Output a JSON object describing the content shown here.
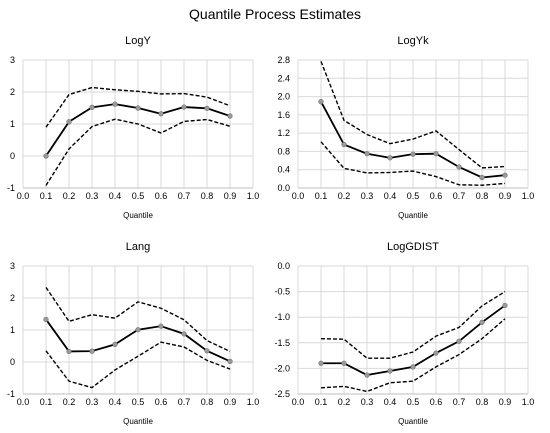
{
  "figure": {
    "title": "Quantile Process Estimates"
  },
  "chart_data": [
    {
      "type": "line",
      "title": "LogY",
      "xlabel": "Quantile",
      "ylabel": "",
      "xlim": [
        0.0,
        1.0
      ],
      "ylim": [
        -1,
        3
      ],
      "xticks": [
        "0.0",
        "0.1",
        "0.2",
        "0.3",
        "0.4",
        "0.5",
        "0.6",
        "0.7",
        "0.8",
        "0.9",
        "1.0"
      ],
      "yticks": [
        "-1",
        "0",
        "1",
        "2",
        "3"
      ],
      "grid": true,
      "x": [
        0.1,
        0.2,
        0.3,
        0.4,
        0.5,
        0.6,
        0.7,
        0.8,
        0.9
      ],
      "series": [
        {
          "role": "estimate",
          "values": [
            0.0,
            1.07,
            1.52,
            1.62,
            1.5,
            1.32,
            1.53,
            1.49,
            1.25
          ]
        },
        {
          "role": "upper",
          "values": [
            0.9,
            1.92,
            2.14,
            2.07,
            2.02,
            1.94,
            1.95,
            1.84,
            1.57
          ]
        },
        {
          "role": "lower",
          "values": [
            -0.92,
            0.22,
            0.92,
            1.15,
            1.0,
            0.72,
            1.08,
            1.14,
            0.93
          ]
        }
      ]
    },
    {
      "type": "line",
      "title": "LogYk",
      "xlabel": "Quantile",
      "ylabel": "",
      "xlim": [
        0.0,
        1.0
      ],
      "ylim": [
        0,
        2.8
      ],
      "xticks": [
        "0.0",
        "0.1",
        "0.2",
        "0.3",
        "0.4",
        "0.5",
        "0.6",
        "0.7",
        "0.8",
        "0.9",
        "1.0"
      ],
      "yticks": [
        "0.0",
        "0.4",
        "0.8",
        "1.2",
        "1.6",
        "2.0",
        "2.4",
        "2.8"
      ],
      "grid": true,
      "x": [
        0.1,
        0.2,
        0.3,
        0.4,
        0.5,
        0.6,
        0.7,
        0.8,
        0.9
      ],
      "series": [
        {
          "role": "estimate",
          "values": [
            1.89,
            0.95,
            0.75,
            0.66,
            0.74,
            0.75,
            0.46,
            0.23,
            0.28
          ]
        },
        {
          "role": "upper",
          "values": [
            2.77,
            1.48,
            1.17,
            0.97,
            1.07,
            1.25,
            0.84,
            0.44,
            0.47
          ]
        },
        {
          "role": "lower",
          "values": [
            1.01,
            0.43,
            0.33,
            0.34,
            0.37,
            0.25,
            0.07,
            0.06,
            0.1
          ]
        }
      ]
    },
    {
      "type": "line",
      "title": "Lang",
      "xlabel": "Quantile",
      "ylabel": "",
      "xlim": [
        0.0,
        1.0
      ],
      "ylim": [
        -1,
        3
      ],
      "xticks": [
        "0.0",
        "0.1",
        "0.2",
        "0.3",
        "0.4",
        "0.5",
        "0.6",
        "0.7",
        "0.8",
        "0.9",
        "1.0"
      ],
      "yticks": [
        "-1",
        "0",
        "1",
        "2",
        "3"
      ],
      "grid": true,
      "x": [
        0.1,
        0.2,
        0.3,
        0.4,
        0.5,
        0.6,
        0.7,
        0.8,
        0.9
      ],
      "series": [
        {
          "role": "estimate",
          "values": [
            1.33,
            0.33,
            0.34,
            0.55,
            1.01,
            1.12,
            0.88,
            0.35,
            0.02
          ]
        },
        {
          "role": "upper",
          "values": [
            2.33,
            1.27,
            1.48,
            1.37,
            1.88,
            1.68,
            1.32,
            0.67,
            0.33
          ]
        },
        {
          "role": "lower",
          "values": [
            0.35,
            -0.6,
            -0.8,
            -0.25,
            0.18,
            0.62,
            0.47,
            0.05,
            -0.22
          ]
        }
      ]
    },
    {
      "type": "line",
      "title": "LogGDIST",
      "xlabel": "Quantile",
      "ylabel": "",
      "xlim": [
        0.0,
        1.0
      ],
      "ylim": [
        -2.5,
        0.0
      ],
      "xticks": [
        "0.0",
        "0.1",
        "0.2",
        "0.3",
        "0.4",
        "0.5",
        "0.6",
        "0.7",
        "0.8",
        "0.9",
        "1.0"
      ],
      "yticks": [
        "-2.5",
        "-2.0",
        "-1.5",
        "-1.0",
        "-0.5",
        "0.0"
      ],
      "grid": true,
      "x": [
        0.1,
        0.2,
        0.3,
        0.4,
        0.5,
        0.6,
        0.7,
        0.8,
        0.9
      ],
      "series": [
        {
          "role": "estimate",
          "values": [
            -1.9,
            -1.9,
            -2.13,
            -2.05,
            -1.97,
            -1.7,
            -1.47,
            -1.1,
            -0.77
          ]
        },
        {
          "role": "upper",
          "values": [
            -1.42,
            -1.43,
            -1.8,
            -1.8,
            -1.68,
            -1.37,
            -1.2,
            -0.78,
            -0.5
          ]
        },
        {
          "role": "lower",
          "values": [
            -2.38,
            -2.35,
            -2.45,
            -2.28,
            -2.25,
            -1.97,
            -1.73,
            -1.42,
            -1.03
          ]
        }
      ]
    }
  ]
}
